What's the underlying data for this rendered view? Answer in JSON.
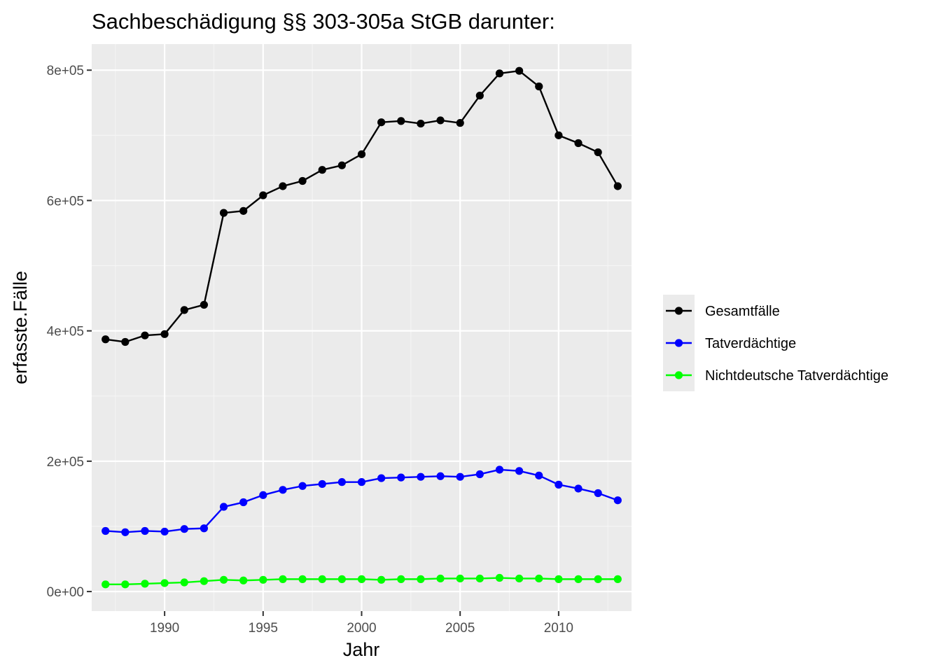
{
  "chart_data": {
    "type": "line",
    "title": "Sachbeschädigung §§ 303-305a StGB darunter:",
    "xlabel": "Jahr",
    "ylabel": "erfasste.Fälle",
    "xlim": [
      1986.3,
      2013.7
    ],
    "ylim": [
      -30000,
      840000
    ],
    "x_ticks": [
      1990,
      1995,
      2000,
      2005,
      2010
    ],
    "x_tick_labels": [
      "1990",
      "1995",
      "2000",
      "2005",
      "2010"
    ],
    "y_ticks": [
      0,
      200000,
      400000,
      600000,
      800000
    ],
    "y_tick_labels": [
      "0e+00",
      "2e+05",
      "4e+05",
      "6e+05",
      "8e+05"
    ],
    "grid": true,
    "legend_position": "right",
    "x": [
      1987,
      1988,
      1989,
      1990,
      1991,
      1992,
      1993,
      1994,
      1995,
      1996,
      1997,
      1998,
      1999,
      2000,
      2001,
      2002,
      2003,
      2004,
      2005,
      2006,
      2007,
      2008,
      2009,
      2010,
      2011,
      2012,
      2013
    ],
    "series": [
      {
        "name": "Gesamtfälle",
        "color": "#000000",
        "values": [
          387000,
          383000,
          393000,
          395000,
          432000,
          440000,
          581000,
          584000,
          608000,
          622000,
          630000,
          647000,
          654000,
          671000,
          720000,
          722000,
          718000,
          723000,
          719000,
          761000,
          795000,
          799000,
          775000,
          700000,
          688000,
          674000,
          622000
        ]
      },
      {
        "name": "Tatverdächtige",
        "color": "#0000ff",
        "values": [
          93000,
          91000,
          93000,
          92000,
          96000,
          97000,
          130000,
          137000,
          148000,
          156000,
          162000,
          165000,
          168000,
          168000,
          174000,
          175000,
          176000,
          177000,
          176000,
          180000,
          187000,
          185000,
          178000,
          164000,
          158000,
          151000,
          140000
        ]
      },
      {
        "name": "Nichtdeutsche Tatverdächtige",
        "color": "#00ff00",
        "values": [
          11000,
          11000,
          12000,
          13000,
          14000,
          16000,
          18000,
          17000,
          18000,
          19000,
          19000,
          19000,
          19000,
          19000,
          18000,
          19000,
          19000,
          20000,
          20000,
          20000,
          21000,
          20000,
          20000,
          19000,
          19000,
          19000,
          19000
        ]
      }
    ]
  },
  "colors": {
    "panel_background": "#ebebeb",
    "grid_major": "#ffffff",
    "grid_minor": "#f5f5f5",
    "tick_text": "#4d4d4d",
    "tick_mark": "#333333"
  }
}
